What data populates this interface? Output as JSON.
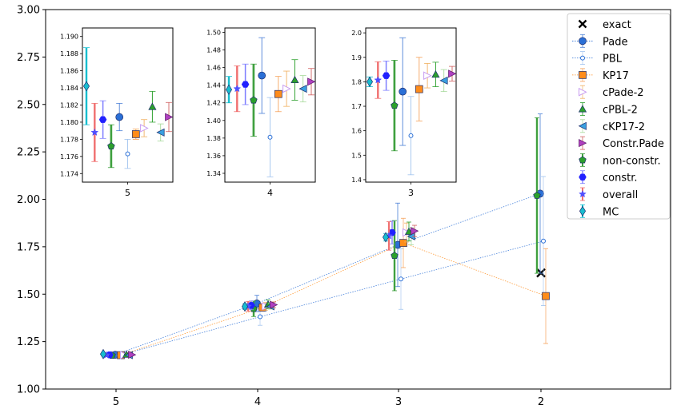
{
  "chart_data": {
    "type": "scatter",
    "x_categories": [
      "5",
      "4",
      "3",
      "2"
    ],
    "main": {
      "ylim": [
        1.0,
        3.0
      ],
      "yticks": [
        "1.00",
        "1.25",
        "1.50",
        "1.75",
        "2.00",
        "2.25",
        "2.50",
        "2.75",
        "3.00"
      ],
      "xticks": [
        "5",
        "4",
        "3",
        "2"
      ],
      "legend_position": "top-right"
    },
    "legend": [
      "exact",
      "Pade",
      "PBL",
      "KP17",
      "cPade-2",
      "cPBL-2",
      "cKP17-2",
      "Constr.Pade",
      "non-constr.",
      "constr.",
      "overall",
      "MC"
    ],
    "styles": {
      "exact": {
        "color": "#000000",
        "marker": "x"
      },
      "Pade": {
        "color": "#2a6fd6",
        "marker": "circle"
      },
      "PBL": {
        "color": "#2a6fd6",
        "marker": "small-circle"
      },
      "KP17": {
        "color": "#ff8c1a",
        "marker": "square"
      },
      "cPade-2": {
        "color": "#c89cf0",
        "marker": "triangle-right"
      },
      "cPBL-2": {
        "color": "#2ca02c",
        "marker": "triangle-up"
      },
      "cKP17-2": {
        "color": "#3aa0e0",
        "marker": "triangle-left"
      },
      "Constr.Pade": {
        "color": "#b040c0",
        "marker": "triangle-right-filled"
      },
      "non-constr.": {
        "color": "#2ca02c",
        "marker": "pentagon"
      },
      "constr.": {
        "color": "#2020ff",
        "marker": "hexagon"
      },
      "overall": {
        "color": "#e41a1c",
        "marker": "star"
      },
      "MC": {
        "color": "#17becf",
        "marker": "diamond"
      }
    },
    "series": [
      {
        "name": "exact",
        "points": [
          {
            "x": "2",
            "y": 1.612
          }
        ]
      },
      {
        "name": "Pade",
        "line": true,
        "points": [
          {
            "x": "5",
            "y": 1.1806,
            "err": 0.0016
          },
          {
            "x": "4",
            "y": 1.451,
            "err": 0.043
          },
          {
            "x": "3",
            "y": 1.76,
            "err": 0.22
          },
          {
            "x": "2",
            "y": 2.03,
            "err": 0.42
          }
        ]
      },
      {
        "name": "PBL",
        "line": true,
        "points": [
          {
            "x": "5",
            "y": 1.1763,
            "err": 0.0017
          },
          {
            "x": "4",
            "y": 1.381,
            "err": 0.045
          },
          {
            "x": "3",
            "y": 1.58,
            "err": 0.16
          },
          {
            "x": "2",
            "y": 1.78,
            "err": 0.34
          }
        ]
      },
      {
        "name": "KP17",
        "line": true,
        "points": [
          {
            "x": "5",
            "y": 1.1786,
            "err": 0.0006
          },
          {
            "x": "4",
            "y": 1.43,
            "err": 0.02
          },
          {
            "x": "3",
            "y": 1.77,
            "err": 0.13
          },
          {
            "x": "2",
            "y": 1.49,
            "err": 0.25
          }
        ]
      },
      {
        "name": "cPade-2",
        "points": [
          {
            "x": "5",
            "y": 1.1793,
            "err": 0.001
          },
          {
            "x": "4",
            "y": 1.436,
            "err": 0.02
          },
          {
            "x": "3",
            "y": 1.825,
            "err": 0.05
          }
        ]
      },
      {
        "name": "cPBL-2",
        "points": [
          {
            "x": "5",
            "y": 1.1818,
            "err": 0.0018
          },
          {
            "x": "4",
            "y": 1.446,
            "err": 0.023
          },
          {
            "x": "3",
            "y": 1.83,
            "err": 0.05
          }
        ]
      },
      {
        "name": "cKP17-2",
        "points": [
          {
            "x": "5",
            "y": 1.1788,
            "err": 0.001
          },
          {
            "x": "4",
            "y": 1.436,
            "err": 0.015
          },
          {
            "x": "3",
            "y": 1.805,
            "err": 0.045
          }
        ]
      },
      {
        "name": "Constr.Pade",
        "points": [
          {
            "x": "5",
            "y": 1.1806,
            "err": 0.0017
          },
          {
            "x": "4",
            "y": 1.444,
            "err": 0.015
          },
          {
            "x": "3",
            "y": 1.833,
            "err": 0.03
          }
        ]
      },
      {
        "name": "non-constr.",
        "points": [
          {
            "x": "5",
            "y": 1.1772,
            "err": 0.0025
          },
          {
            "x": "4",
            "y": 1.423,
            "err": 0.041
          },
          {
            "x": "3",
            "y": 1.703,
            "err": 0.185
          },
          {
            "x": "2",
            "y": 2.02,
            "err": 0.41
          }
        ]
      },
      {
        "name": "constr.",
        "points": [
          {
            "x": "5",
            "y": 1.1803,
            "err": 0.0022
          },
          {
            "x": "4",
            "y": 1.441,
            "err": 0.023
          },
          {
            "x": "3",
            "y": 1.825,
            "err": 0.06
          }
        ]
      },
      {
        "name": "overall",
        "points": [
          {
            "x": "5",
            "y": 1.1788,
            "err": 0.0034
          },
          {
            "x": "4",
            "y": 1.436,
            "err": 0.026
          },
          {
            "x": "3",
            "y": 1.807,
            "err": 0.075
          }
        ]
      },
      {
        "name": "MC",
        "points": [
          {
            "x": "5",
            "y": 1.1842,
            "err": 0.0045
          },
          {
            "x": "4",
            "y": 1.435,
            "err": 0.015
          },
          {
            "x": "3",
            "y": 1.8,
            "err": 0.02
          }
        ]
      }
    ],
    "insets": [
      {
        "x_label": "5",
        "ylim": [
          1.173,
          1.191
        ],
        "yticks": [
          "1.174",
          "1.176",
          "1.178",
          "1.180",
          "1.182",
          "1.184",
          "1.186",
          "1.188",
          "1.190"
        ]
      },
      {
        "x_label": "4",
        "ylim": [
          1.33,
          1.505
        ],
        "yticks": [
          "1.34",
          "1.36",
          "1.38",
          "1.40",
          "1.42",
          "1.44",
          "1.46",
          "1.48",
          "1.50"
        ]
      },
      {
        "x_label": "3",
        "ylim": [
          1.39,
          2.02
        ],
        "yticks": [
          "1.4",
          "1.5",
          "1.6",
          "1.7",
          "1.8",
          "1.9",
          "2.0"
        ]
      }
    ]
  }
}
